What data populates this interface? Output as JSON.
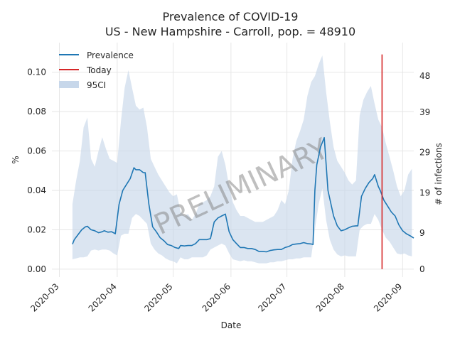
{
  "chart_data": {
    "type": "line",
    "title": "Prevalence of COVID-19",
    "subtitle": "US - New Hampshire - Carroll, pop. = 48910",
    "xlabel": "Date",
    "ylabel": "%",
    "y2label": "# of infections",
    "watermark": "PRELIMINARY",
    "grid": true,
    "legend_position": "top-left",
    "xlim": [
      "2020-02-26",
      "2020-09-07"
    ],
    "ylim": [
      -0.004,
      0.115
    ],
    "x_ticks": [
      "2020-03",
      "2020-04",
      "2020-05",
      "2020-06",
      "2020-07",
      "2020-08",
      "2020-09"
    ],
    "y_ticks": [
      "0.00",
      "0.02",
      "0.04",
      "0.06",
      "0.08",
      "0.10"
    ],
    "y2_ticks": [
      {
        "label": "0",
        "y": 0.0
      },
      {
        "label": "9",
        "y": 0.0184
      },
      {
        "label": "19",
        "y": 0.0388
      },
      {
        "label": "29",
        "y": 0.0593
      },
      {
        "label": "39",
        "y": 0.0797
      },
      {
        "label": "48",
        "y": 0.0981
      }
    ],
    "legend": [
      {
        "label": "Prevalence",
        "kind": "line",
        "color": "#1f77b4"
      },
      {
        "label": "Today",
        "kind": "line",
        "color": "#d62728"
      },
      {
        "label": "95CI",
        "kind": "patch",
        "color": "#c7d7ea"
      }
    ],
    "today": {
      "date": "2020-08-21",
      "y_min": 0.0,
      "y_max": 0.109
    },
    "series": [
      {
        "name": "Prevalence",
        "color": "#1f77b4",
        "points": [
          [
            "2020-03-08",
            0.0127
          ],
          [
            "2020-03-09",
            0.015
          ],
          [
            "2020-03-11",
            0.0175
          ],
          [
            "2020-03-13",
            0.02
          ],
          [
            "2020-03-15",
            0.0215
          ],
          [
            "2020-03-16",
            0.0218
          ],
          [
            "2020-03-18",
            0.02
          ],
          [
            "2020-03-20",
            0.0195
          ],
          [
            "2020-03-22",
            0.0185
          ],
          [
            "2020-03-24",
            0.019
          ],
          [
            "2020-03-25",
            0.0195
          ],
          [
            "2020-03-27",
            0.0188
          ],
          [
            "2020-03-29",
            0.019
          ],
          [
            "2020-03-31",
            0.018
          ],
          [
            "2020-04-02",
            0.033
          ],
          [
            "2020-04-04",
            0.04
          ],
          [
            "2020-04-06",
            0.043
          ],
          [
            "2020-04-08",
            0.046
          ],
          [
            "2020-04-10",
            0.0515
          ],
          [
            "2020-04-11",
            0.0505
          ],
          [
            "2020-04-13",
            0.0505
          ],
          [
            "2020-04-15",
            0.049
          ],
          [
            "2020-04-16",
            0.049
          ],
          [
            "2020-04-18",
            0.033
          ],
          [
            "2020-04-20",
            0.0215
          ],
          [
            "2020-04-22",
            0.019
          ],
          [
            "2020-04-24",
            0.016
          ],
          [
            "2020-04-26",
            0.0145
          ],
          [
            "2020-04-28",
            0.0125
          ],
          [
            "2020-04-30",
            0.012
          ],
          [
            "2020-05-02",
            0.011
          ],
          [
            "2020-05-04",
            0.0105
          ],
          [
            "2020-05-05",
            0.012
          ],
          [
            "2020-05-07",
            0.0118
          ],
          [
            "2020-05-09",
            0.012
          ],
          [
            "2020-05-11",
            0.012
          ],
          [
            "2020-05-13",
            0.013
          ],
          [
            "2020-05-15",
            0.015
          ],
          [
            "2020-05-17",
            0.015
          ],
          [
            "2020-05-19",
            0.015
          ],
          [
            "2020-05-21",
            0.0155
          ],
          [
            "2020-05-23",
            0.024
          ],
          [
            "2020-05-25",
            0.026
          ],
          [
            "2020-05-27",
            0.027
          ],
          [
            "2020-05-29",
            0.028
          ],
          [
            "2020-05-31",
            0.019
          ],
          [
            "2020-06-02",
            0.015
          ],
          [
            "2020-06-04",
            0.013
          ],
          [
            "2020-06-06",
            0.011
          ],
          [
            "2020-06-08",
            0.011
          ],
          [
            "2020-06-10",
            0.0105
          ],
          [
            "2020-06-12",
            0.0105
          ],
          [
            "2020-06-14",
            0.01
          ],
          [
            "2020-06-16",
            0.009
          ],
          [
            "2020-06-18",
            0.009
          ],
          [
            "2020-06-20",
            0.0088
          ],
          [
            "2020-06-22",
            0.0095
          ],
          [
            "2020-06-24",
            0.0098
          ],
          [
            "2020-06-26",
            0.01
          ],
          [
            "2020-06-28",
            0.01
          ],
          [
            "2020-06-30",
            0.011
          ],
          [
            "2020-07-02",
            0.0115
          ],
          [
            "2020-07-04",
            0.0125
          ],
          [
            "2020-07-06",
            0.0128
          ],
          [
            "2020-07-08",
            0.013
          ],
          [
            "2020-07-10",
            0.0135
          ],
          [
            "2020-07-12",
            0.013
          ],
          [
            "2020-07-14",
            0.0128
          ],
          [
            "2020-07-15",
            0.0125
          ],
          [
            "2020-07-16",
            0.04
          ],
          [
            "2020-07-17",
            0.053
          ],
          [
            "2020-07-19",
            0.062
          ],
          [
            "2020-07-21",
            0.0668
          ],
          [
            "2020-07-23",
            0.04
          ],
          [
            "2020-07-26",
            0.027
          ],
          [
            "2020-07-28",
            0.022
          ],
          [
            "2020-07-30",
            0.0195
          ],
          [
            "2020-08-01",
            0.02
          ],
          [
            "2020-08-03",
            0.021
          ],
          [
            "2020-08-05",
            0.0218
          ],
          [
            "2020-08-07",
            0.022
          ],
          [
            "2020-08-08",
            0.022
          ],
          [
            "2020-08-10",
            0.037
          ],
          [
            "2020-08-12",
            0.041
          ],
          [
            "2020-08-14",
            0.044
          ],
          [
            "2020-08-16",
            0.046
          ],
          [
            "2020-08-17",
            0.048
          ],
          [
            "2020-08-19",
            0.042
          ],
          [
            "2020-08-20",
            0.04
          ],
          [
            "2020-08-22",
            0.035
          ],
          [
            "2020-08-24",
            0.032
          ],
          [
            "2020-08-26",
            0.029
          ],
          [
            "2020-08-28",
            0.027
          ],
          [
            "2020-08-30",
            0.0225
          ],
          [
            "2020-09-01",
            0.0195
          ],
          [
            "2020-09-03",
            0.018
          ],
          [
            "2020-09-05",
            0.017
          ],
          [
            "2020-09-07",
            0.0158
          ]
        ]
      }
    ],
    "ci_band": {
      "name": "95CI",
      "color": "#c7d7ea",
      "points": [
        [
          "2020-03-08",
          0.005,
          0.033
        ],
        [
          "2020-03-10",
          0.0055,
          0.045
        ],
        [
          "2020-03-12",
          0.006,
          0.055
        ],
        [
          "2020-03-14",
          0.006,
          0.072
        ],
        [
          "2020-03-16",
          0.0065,
          0.077
        ],
        [
          "2020-03-18",
          0.0095,
          0.056
        ],
        [
          "2020-03-20",
          0.01,
          0.052
        ],
        [
          "2020-03-22",
          0.0095,
          0.06
        ],
        [
          "2020-03-24",
          0.01,
          0.067
        ],
        [
          "2020-03-26",
          0.01,
          0.061
        ],
        [
          "2020-03-28",
          0.0095,
          0.056
        ],
        [
          "2020-03-30",
          0.008,
          0.055
        ],
        [
          "2020-04-01",
          0.007,
          0.054
        ],
        [
          "2020-04-03",
          0.017,
          0.075
        ],
        [
          "2020-04-05",
          0.018,
          0.092
        ],
        [
          "2020-04-07",
          0.018,
          0.101
        ],
        [
          "2020-04-09",
          0.026,
          0.092
        ],
        [
          "2020-04-11",
          0.028,
          0.083
        ],
        [
          "2020-04-13",
          0.027,
          0.081
        ],
        [
          "2020-04-15",
          0.025,
          0.082
        ],
        [
          "2020-04-17",
          0.023,
          0.072
        ],
        [
          "2020-04-19",
          0.013,
          0.056
        ],
        [
          "2020-04-21",
          0.01,
          0.052
        ],
        [
          "2020-04-23",
          0.008,
          0.048
        ],
        [
          "2020-04-25",
          0.007,
          0.045
        ],
        [
          "2020-04-27",
          0.0055,
          0.042
        ],
        [
          "2020-04-29",
          0.0045,
          0.039
        ],
        [
          "2020-05-01",
          0.004,
          0.037
        ],
        [
          "2020-05-03",
          0.003,
          0.038
        ],
        [
          "2020-05-05",
          0.006,
          0.029
        ],
        [
          "2020-05-07",
          0.005,
          0.027
        ],
        [
          "2020-05-09",
          0.005,
          0.028
        ],
        [
          "2020-05-11",
          0.006,
          0.025
        ],
        [
          "2020-05-13",
          0.006,
          0.028
        ],
        [
          "2020-05-15",
          0.006,
          0.033
        ],
        [
          "2020-05-17",
          0.006,
          0.034
        ],
        [
          "2020-05-19",
          0.007,
          0.035
        ],
        [
          "2020-05-21",
          0.01,
          0.037
        ],
        [
          "2020-05-23",
          0.011,
          0.042
        ],
        [
          "2020-05-25",
          0.012,
          0.057
        ],
        [
          "2020-05-27",
          0.013,
          0.06
        ],
        [
          "2020-05-29",
          0.012,
          0.053
        ],
        [
          "2020-05-31",
          0.008,
          0.042
        ],
        [
          "2020-06-02",
          0.005,
          0.034
        ],
        [
          "2020-06-04",
          0.0045,
          0.03
        ],
        [
          "2020-06-06",
          0.004,
          0.027
        ],
        [
          "2020-06-08",
          0.0045,
          0.027
        ],
        [
          "2020-06-10",
          0.004,
          0.026
        ],
        [
          "2020-06-12",
          0.004,
          0.025
        ],
        [
          "2020-06-14",
          0.0035,
          0.024
        ],
        [
          "2020-06-16",
          0.003,
          0.024
        ],
        [
          "2020-06-18",
          0.003,
          0.024
        ],
        [
          "2020-06-20",
          0.003,
          0.025
        ],
        [
          "2020-06-22",
          0.0035,
          0.026
        ],
        [
          "2020-06-24",
          0.0035,
          0.027
        ],
        [
          "2020-06-26",
          0.004,
          0.03
        ],
        [
          "2020-06-28",
          0.004,
          0.035
        ],
        [
          "2020-06-30",
          0.0045,
          0.033
        ],
        [
          "2020-07-02",
          0.005,
          0.04
        ],
        [
          "2020-07-04",
          0.005,
          0.056
        ],
        [
          "2020-07-06",
          0.0055,
          0.065
        ],
        [
          "2020-07-08",
          0.0055,
          0.07
        ],
        [
          "2020-07-10",
          0.006,
          0.076
        ],
        [
          "2020-07-12",
          0.006,
          0.088
        ],
        [
          "2020-07-14",
          0.006,
          0.095
        ],
        [
          "2020-07-16",
          0.02,
          0.098
        ],
        [
          "2020-07-18",
          0.033,
          0.104
        ],
        [
          "2020-07-20",
          0.041,
          0.1085
        ],
        [
          "2020-07-22",
          0.025,
          0.09
        ],
        [
          "2020-07-24",
          0.015,
          0.075
        ],
        [
          "2020-07-26",
          0.01,
          0.062
        ],
        [
          "2020-07-28",
          0.0075,
          0.055
        ],
        [
          "2020-07-30",
          0.0065,
          0.052
        ],
        [
          "2020-08-01",
          0.007,
          0.049
        ],
        [
          "2020-08-03",
          0.0065,
          0.045
        ],
        [
          "2020-08-05",
          0.0065,
          0.043
        ],
        [
          "2020-08-07",
          0.0065,
          0.045
        ],
        [
          "2020-08-09",
          0.02,
          0.078
        ],
        [
          "2020-08-11",
          0.022,
          0.086
        ],
        [
          "2020-08-13",
          0.023,
          0.09
        ],
        [
          "2020-08-15",
          0.023,
          0.093
        ],
        [
          "2020-08-17",
          0.028,
          0.084
        ],
        [
          "2020-08-19",
          0.025,
          0.076
        ],
        [
          "2020-08-21",
          0.02,
          0.072
        ],
        [
          "2020-08-23",
          0.016,
          0.064
        ],
        [
          "2020-08-25",
          0.014,
          0.057
        ],
        [
          "2020-08-27",
          0.011,
          0.05
        ],
        [
          "2020-08-29",
          0.008,
          0.042
        ],
        [
          "2020-08-31",
          0.0075,
          0.037
        ],
        [
          "2020-09-02",
          0.008,
          0.04
        ],
        [
          "2020-09-04",
          0.007,
          0.048
        ],
        [
          "2020-09-06",
          0.0065,
          0.051
        ]
      ]
    }
  }
}
